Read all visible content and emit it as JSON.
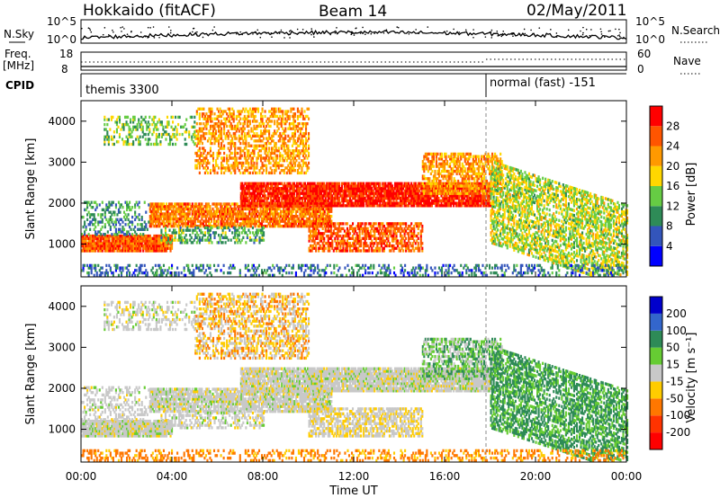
{
  "header": {
    "title": "Hokkaido (fitACF)",
    "beam": "Beam 14",
    "date": "02/May/2011"
  },
  "aux": {
    "nsky_label": "N.Sky",
    "nsearch_label": "N.Search",
    "freq_label_1": "Freq.",
    "freq_label_2": "[MHz]",
    "nave_label": "Nave",
    "cpid_label": "CPID",
    "nsky_ticks": [
      "10^5",
      "10^0"
    ],
    "nsearch_ticks": [
      "10^5",
      "10^0"
    ],
    "freq_ticks": [
      "18",
      "8"
    ],
    "nave_ticks": [
      "60",
      "0"
    ],
    "cpid_modes": [
      "themis 3300",
      "normal (fast) -151"
    ]
  },
  "chart_data": [
    {
      "type": "heatmap",
      "panel": "power",
      "ylabel": "Slant Range [km]",
      "yticks": [
        1000,
        2000,
        3000,
        4000
      ],
      "ylim": [
        200,
        4500
      ],
      "xlim": [
        0,
        24
      ],
      "colorbar": {
        "label": "Power [dB]",
        "ticks": [
          4,
          8,
          12,
          16,
          20,
          24,
          28
        ],
        "colors": [
          "#0000ff",
          "#3355bb",
          "#2e8b57",
          "#66cc44",
          "#ffd700",
          "#ff9900",
          "#ff5500",
          "#ff0000"
        ]
      }
    },
    {
      "type": "heatmap",
      "panel": "velocity",
      "ylabel": "Slant Range [km]",
      "yticks": [
        1000,
        2000,
        3000,
        4000
      ],
      "ylim": [
        200,
        4500
      ],
      "xlim": [
        0,
        24
      ],
      "xticks": [
        "00:00",
        "04:00",
        "08:00",
        "12:00",
        "16:00",
        "20:00",
        "00:00"
      ],
      "xlabel": "Time UT",
      "colorbar": {
        "label": "Velocity [m s⁻¹]",
        "ticks": [
          "200",
          "100",
          "50",
          "15",
          "-15",
          "-50",
          "-100",
          "-200"
        ],
        "colors": [
          "#0000cc",
          "#3366cc",
          "#2e8b57",
          "#66cc33",
          "#c8c8c8",
          "#ffcc00",
          "#ff7700",
          "#ff3300",
          "#ff0000"
        ]
      }
    }
  ]
}
